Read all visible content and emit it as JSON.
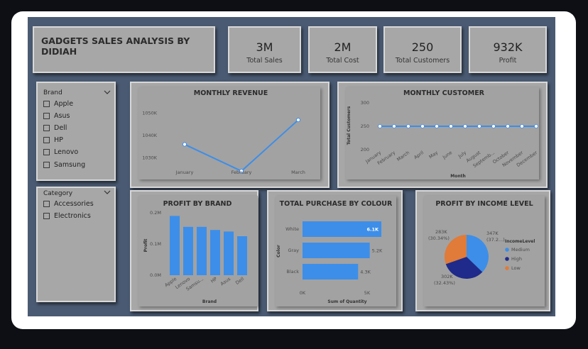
{
  "title": "GADGETS SALES ANALYSIS BY DIDIAH",
  "kpis": [
    {
      "value": "3M",
      "label": "Total Sales"
    },
    {
      "value": "2M",
      "label": "Total Cost"
    },
    {
      "value": "250",
      "label": "Total Customers"
    },
    {
      "value": "932K",
      "label": "Profit"
    }
  ],
  "slicers": {
    "brand": {
      "header": "Brand",
      "options": [
        "Apple",
        "Asus",
        "Dell",
        "HP",
        "Lenovo",
        "Samsung"
      ]
    },
    "category": {
      "header": "Category",
      "options": [
        "Accessories",
        "Electronics"
      ]
    }
  },
  "colors": {
    "accent": "#3d8ee8",
    "navy": "#1f2a8a",
    "orange": "#e07b39",
    "dashboard_bg": "#4a5a72",
    "card": "#a7a7a7"
  },
  "chart_data": [
    {
      "type": "line",
      "title": "MONTHLY REVENUE",
      "categories": [
        "January",
        "February",
        "March"
      ],
      "y_ticks": [
        "1050K",
        "1040K",
        "1030K"
      ],
      "ylim": [
        1025,
        1055
      ],
      "values": [
        1036,
        1024,
        1047
      ],
      "grid": false
    },
    {
      "type": "line",
      "title": "MONTHLY CUSTOMER",
      "categories": [
        "January",
        "February",
        "March",
        "April",
        "May",
        "June",
        "July",
        "August",
        "Septemb...",
        "October",
        "November",
        "December"
      ],
      "y_ticks": [
        "300",
        "250",
        "200"
      ],
      "ylim": [
        200,
        300
      ],
      "values": [
        250,
        250,
        250,
        250,
        250,
        250,
        250,
        250,
        250,
        250,
        250,
        250
      ],
      "xlabel": "Month",
      "ylabel": "Total Customers",
      "grid": false
    },
    {
      "type": "bar",
      "title": "PROFIT BY BRAND",
      "categories": [
        "Apple",
        "Lenovo",
        "Samsu...",
        "HP",
        "Asus",
        "Dell"
      ],
      "values": [
        0.19,
        0.155,
        0.155,
        0.145,
        0.14,
        0.125
      ],
      "y_ticks": [
        "0.2M",
        "0.1M",
        "0.0M"
      ],
      "ylim": [
        0,
        0.2
      ],
      "xlabel": "Brand",
      "ylabel": "Profit"
    },
    {
      "type": "bar",
      "orientation": "horizontal",
      "title": "TOTAL PURCHASE BY COLOUR",
      "categories": [
        "White",
        "Gray",
        "Black"
      ],
      "values": [
        6.1,
        5.2,
        4.3
      ],
      "data_labels": [
        "6.1K",
        "5.2K",
        "4.3K"
      ],
      "x_ticks": [
        "0K",
        "5K"
      ],
      "xlim": [
        0,
        5
      ],
      "xlabel": "Sum of Quantity",
      "ylabel": "Color"
    },
    {
      "type": "pie",
      "title": "PROFIT BY INCOME LEVEL",
      "legend_title": "IncomeLevel",
      "legend_position": "right",
      "slices": [
        {
          "name": "Medium",
          "value": 347,
          "label": "347K",
          "pct": "(37.2...)",
          "color": "#3d8ee8"
        },
        {
          "name": "High",
          "value": 302,
          "label": "302K",
          "pct": "(32.43%)",
          "color": "#1f2a8a"
        },
        {
          "name": "Low",
          "value": 283,
          "label": "283K",
          "pct": "(30.34%)",
          "color": "#e07b39"
        }
      ]
    }
  ]
}
